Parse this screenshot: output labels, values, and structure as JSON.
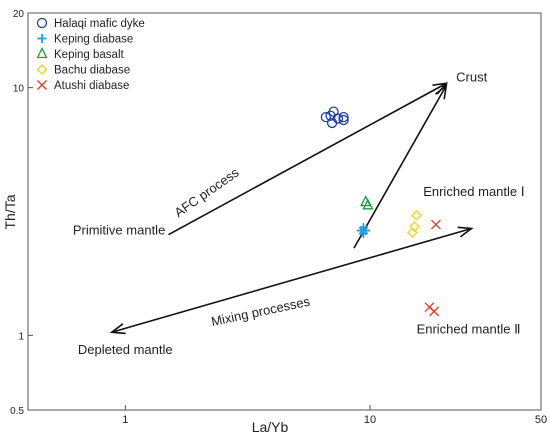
{
  "chart_data": {
    "type": "scatter",
    "xlabel": "La/Yb",
    "ylabel": "Th/Ta",
    "xscale": "log",
    "yscale": "log",
    "xlim": [
      0.4,
      50
    ],
    "ylim": [
      0.5,
      20
    ],
    "x_ticks": [
      {
        "value": 1,
        "label": "1"
      },
      {
        "value": 10,
        "label": "10"
      },
      {
        "value": 50,
        "label": "50"
      }
    ],
    "y_ticks": [
      {
        "value": 0.5,
        "label": "0.5"
      },
      {
        "value": 1,
        "label": "1"
      },
      {
        "value": 10,
        "label": "10"
      },
      {
        "value": 20,
        "label": "20"
      }
    ],
    "legend_position": "top-left",
    "series": [
      {
        "name": "Halaqi mafic dyke",
        "marker": "circle",
        "color": "#1f3fa0",
        "points": [
          [
            6.6,
            7.6
          ],
          [
            7.0,
            7.2
          ],
          [
            7.4,
            7.5
          ],
          [
            7.8,
            7.4
          ],
          [
            7.8,
            7.6
          ],
          [
            7.1,
            8.0
          ],
          [
            6.9,
            7.7
          ]
        ]
      },
      {
        "name": "Keping diabase",
        "marker": "plus",
        "color": "#1a9ee0",
        "points": [
          [
            9.2,
            2.65
          ],
          [
            9.4,
            2.72
          ],
          [
            9.6,
            2.65
          ],
          [
            9.4,
            2.58
          ]
        ]
      },
      {
        "name": "Keping basalt",
        "marker": "triangle",
        "color": "#1a9a3a",
        "points": [
          [
            9.6,
            3.45
          ],
          [
            9.8,
            3.35
          ]
        ]
      },
      {
        "name": "Bachu diabase",
        "marker": "diamond",
        "color": "#f2d21c",
        "points": [
          [
            15.5,
            3.05
          ],
          [
            15.2,
            2.75
          ],
          [
            14.9,
            2.6
          ]
        ]
      },
      {
        "name": "Atushi diabase",
        "marker": "cross",
        "color": "#e03a2a",
        "points": [
          [
            18.6,
            2.8
          ],
          [
            17.5,
            1.3
          ],
          [
            18.3,
            1.25
          ]
        ]
      }
    ],
    "annotations": [
      {
        "text": "Crust",
        "x": 22.5,
        "y": 10.6
      },
      {
        "text": "Enriched mantle Ⅰ",
        "x": 16.5,
        "y": 3.65
      },
      {
        "text": "Primitive mantle",
        "x": 0.61,
        "y": 2.55
      },
      {
        "text": "Depleted mantle",
        "x": 0.64,
        "y": 0.84
      },
      {
        "text": "Enriched mantle Ⅱ",
        "x": 15.5,
        "y": 1.02
      },
      {
        "text": "AFC process",
        "x": 2.2,
        "y": 3.65,
        "angle": -35
      },
      {
        "text": "Mixing processes",
        "x": 3.6,
        "y": 1.2,
        "angle": -12
      }
    ],
    "arrows": [
      {
        "from": [
          1.5,
          2.55
        ],
        "to": [
          20.5,
          10.4
        ]
      },
      {
        "from": [
          8.6,
          2.25
        ],
        "to": [
          20.5,
          10.2
        ]
      },
      {
        "from": [
          0.88,
          1.03
        ],
        "to": [
          26.0,
          2.7
        ],
        "double": true
      }
    ]
  }
}
